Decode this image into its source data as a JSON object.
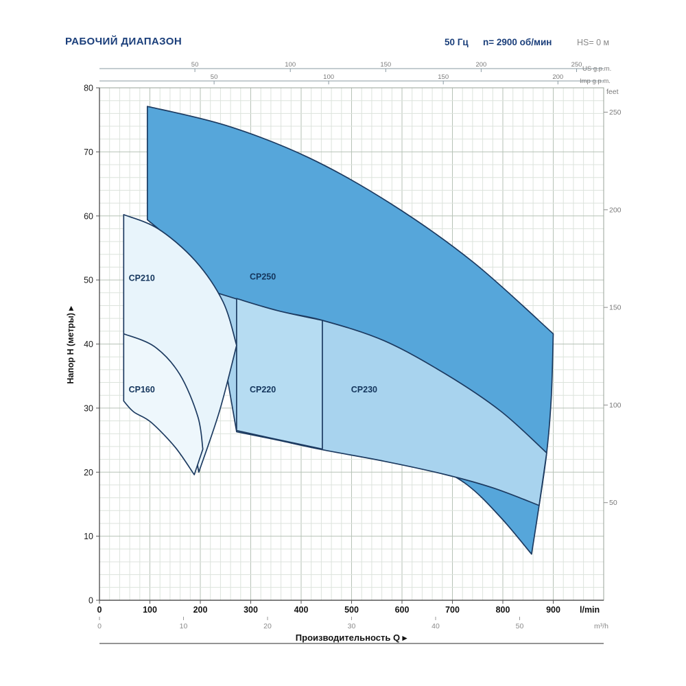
{
  "header": {
    "title": "РАБОЧИЙ ДИАПАЗОН",
    "frequency": "50 Гц",
    "speed": "n= 2900 об/мин",
    "suction_head": "HS= 0 м"
  },
  "chart_data": {
    "type": "area",
    "title": "РАБОЧИЙ ДИАПАЗОН",
    "xlabel": "Производительность Q",
    "ylabel": "Напор H (метры)",
    "axis_arrow": "▸",
    "x_max_lmin": 1000,
    "y_max_m": 80,
    "axes": {
      "bottom_lmin": {
        "unit": "l/min",
        "tick_step": 100,
        "minor_step": 20,
        "tick_labels": [
          0,
          100,
          200,
          300,
          400,
          500,
          600,
          700,
          800,
          900
        ]
      },
      "bottom_m3h": {
        "unit": "m³/h",
        "ticks": [
          0,
          10,
          20,
          30,
          40,
          50
        ],
        "lmin_per_unit": 16.6667
      },
      "left_m": {
        "ticks": [
          0,
          10,
          20,
          30,
          40,
          50,
          60,
          70,
          80
        ],
        "minor_step": 2
      },
      "top_usgpm": {
        "unit": "US g.p.m.",
        "ticks": [
          50,
          100,
          150,
          200,
          250
        ],
        "lmin_per_unit": 3.785
      },
      "top_impgpm": {
        "unit": "Imp g.p.m.",
        "ticks": [
          50,
          100,
          150,
          200
        ],
        "lmin_per_unit": 4.546
      },
      "right_feet": {
        "unit": "feet",
        "ticks": [
          50,
          100,
          150,
          200,
          250
        ],
        "m_per_unit": 0.3048
      }
    },
    "regions": [
      {
        "name": "CP250",
        "fill": "#56a6da",
        "edges": [
          [
            [
              95,
              77.1
            ],
            [
              252,
              74.1
            ],
            [
              415,
              69.1
            ],
            [
              578,
              61.9
            ],
            [
              741,
              52.8
            ],
            [
              900,
              41.6
            ]
          ],
          [
            [
              900,
              41.6
            ],
            [
              896,
              31.6
            ],
            [
              887,
              23.0
            ],
            [
              872,
              14.8
            ],
            [
              857,
              7.2
            ]
          ],
          [
            [
              857,
              7.2
            ],
            [
              796,
              12.9
            ],
            [
              728,
              18.1
            ],
            [
              633,
              22.6
            ],
            [
              537,
              28.0
            ],
            [
              442,
              33.7
            ],
            [
              347,
              39.9
            ],
            [
              224,
              48.3
            ],
            [
              143,
              56.0
            ],
            [
              95,
              59.4
            ]
          ],
          [
            [
              95,
              59.4
            ],
            [
              95,
              77.1
            ]
          ]
        ]
      },
      {
        "name": "CP230",
        "fill": "#a8d3ee",
        "edges": [
          [
            [
              224,
              48.2
            ],
            [
              347,
              45.3
            ],
            [
              442,
              43.7
            ],
            [
              565,
              40.5
            ],
            [
              687,
              35.3
            ],
            [
              796,
              29.5
            ],
            [
              887,
              23.0
            ]
          ],
          [
            [
              887,
              23.0
            ],
            [
              872,
              14.8
            ]
          ],
          [
            [
              872,
              14.8
            ],
            [
              782,
              17.5
            ],
            [
              687,
              19.6
            ],
            [
              565,
              21.7
            ],
            [
              442,
              23.5
            ],
            [
              347,
              25.1
            ],
            [
              272,
              26.3
            ]
          ],
          [
            [
              272,
              26.3
            ],
            [
              224,
              48.2
            ]
          ]
        ]
      },
      {
        "name": "CP220",
        "fill": "#b6dcf2",
        "edges": [
          [
            [
              272,
              47.1
            ],
            [
              354,
              45.2
            ],
            [
              442,
              43.7
            ]
          ],
          [
            [
              442,
              43.7
            ],
            [
              442,
              23.6
            ]
          ],
          [
            [
              442,
              23.6
            ],
            [
              347,
              25.2
            ],
            [
              272,
              26.5
            ]
          ],
          [
            [
              272,
              26.5
            ],
            [
              272,
              47.1
            ]
          ]
        ]
      },
      {
        "name": "CP210",
        "fill": "#e8f4fb",
        "edges": [
          [
            [
              48,
              60.2
            ],
            [
              116,
              58.0
            ],
            [
              190,
              53.0
            ],
            [
              245,
              46.6
            ],
            [
              272,
              39.8
            ]
          ],
          [
            [
              272,
              39.8
            ],
            [
              238,
              29.5
            ],
            [
              197,
              20.0
            ]
          ],
          [
            [
              197,
              20.0
            ],
            [
              173,
              29.5
            ],
            [
              136,
              36.2
            ],
            [
              88,
              39.8
            ],
            [
              48,
              41.6
            ]
          ],
          [
            [
              48,
              41.6
            ],
            [
              48,
              60.2
            ]
          ]
        ]
      },
      {
        "name": "CP160",
        "fill": "#eef7fc",
        "edges": [
          [
            [
              48,
              41.6
            ],
            [
              109,
              39.6
            ],
            [
              159,
              35.3
            ],
            [
              195,
              28.7
            ],
            [
              205,
              23.6
            ]
          ],
          [
            [
              205,
              23.6
            ],
            [
              188,
              19.6
            ]
          ],
          [
            [
              188,
              19.6
            ],
            [
              150,
              23.9
            ],
            [
              102,
              27.8
            ],
            [
              68,
              29.4
            ],
            [
              48,
              31.1
            ]
          ],
          [
            [
              48,
              31.1
            ],
            [
              48,
              41.6
            ]
          ]
        ]
      }
    ],
    "region_labels": [
      {
        "text": "CP210",
        "q": 84,
        "h": 50.3
      },
      {
        "text": "CP250",
        "q": 324,
        "h": 50.5
      },
      {
        "text": "CP160",
        "q": 84,
        "h": 32.9
      },
      {
        "text": "CP220",
        "q": 324,
        "h": 32.9
      },
      {
        "text": "CP230",
        "q": 525,
        "h": 32.9
      }
    ],
    "styles": {
      "region_stroke": "#1c3a60",
      "grid_minor": "#dce3dc",
      "grid_major": "#b6c2b6",
      "axis_color": "#555555",
      "secondary_color": "#7a7a7a",
      "label_color": "#14355c",
      "title_color": "#1a3e7a"
    }
  }
}
